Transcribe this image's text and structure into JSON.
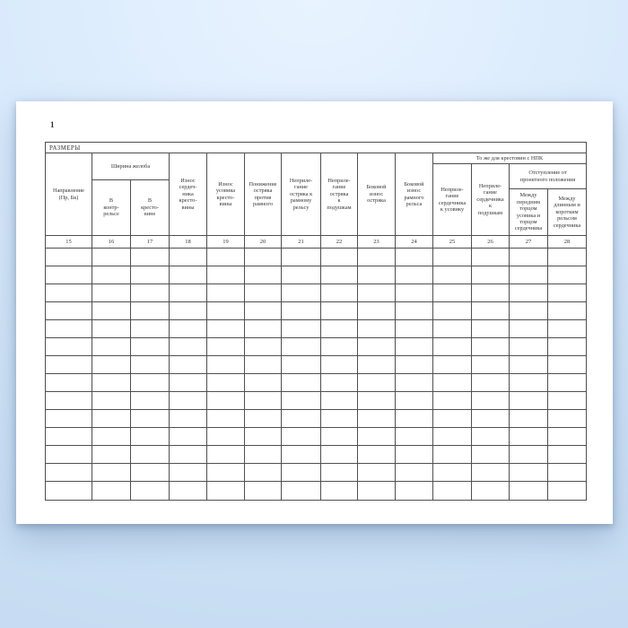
{
  "page": {
    "number": "1"
  },
  "table": {
    "title": "РАЗМЕРЫ",
    "groups": {
      "groove_width": "Ширина желоба",
      "npk_crossing": "То же для крестовин с НПК",
      "deviation": "Отступление от\nпроектного положения"
    },
    "columns": [
      {
        "num": "15",
        "label": "Направление\n(Пр, Бк)"
      },
      {
        "num": "16",
        "label": "В\nконтр-\nрельсе"
      },
      {
        "num": "17",
        "label": "В\nкресто-\nвине"
      },
      {
        "num": "18",
        "label": "Износ\nсердеч-\nника\nкресто-\nвины"
      },
      {
        "num": "19",
        "label": "Износ\nусовика\nкресто-\nвины"
      },
      {
        "num": "20",
        "label": "Понижение\nостряка\nпротив\nрамного"
      },
      {
        "num": "21",
        "label": "Неприле-\nгание\nостряка к\nрамному\nрельсу"
      },
      {
        "num": "22",
        "label": "Неприле-\nгание\nостряка\nк\nподушкам"
      },
      {
        "num": "23",
        "label": "Боковой\nизнос\nостряка"
      },
      {
        "num": "24",
        "label": "Боковой\nизнос\nрамного\nрельса"
      },
      {
        "num": "25",
        "label": "Неприле-\nгание\nсердечника\nк усовику"
      },
      {
        "num": "26",
        "label": "Неприле-\nгание\nсердечника\nк\nподушкам"
      },
      {
        "num": "27",
        "label": "Между\nпередним\nторцом\nусовика и\nторцом\nсердечника"
      },
      {
        "num": "28",
        "label": "Между\nдлинным и\nкоротким\nрельсом\nсердечника"
      }
    ],
    "data_row_count": 14
  },
  "colors": {
    "background_top": "#e8f3ff",
    "background_bottom": "#c7dcf2",
    "paper": "#ffffff",
    "table_line": "#4f4f4f",
    "text": "#363636"
  }
}
